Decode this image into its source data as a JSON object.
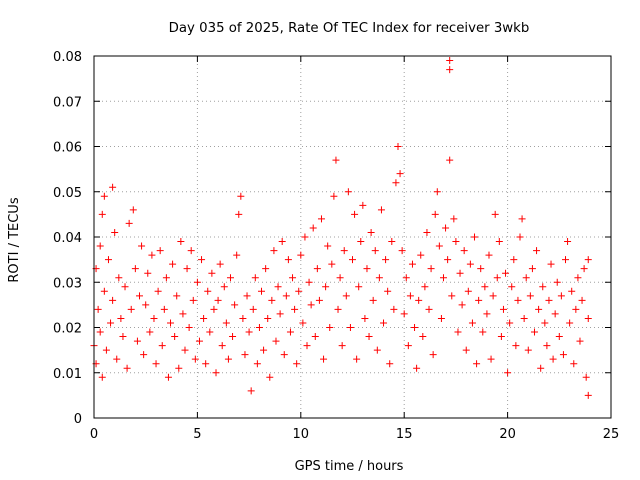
{
  "chart_data": {
    "type": "scatter",
    "title": "Day 035 of 2025, Rate Of TEC Index for receiver 3wkb",
    "xlabel": "GPS time / hours",
    "ylabel": "ROTI / TECUs",
    "xlim": [
      0,
      25
    ],
    "ylim": [
      0,
      0.08
    ],
    "xticks": [
      0,
      5,
      10,
      15,
      20,
      25
    ],
    "xtick_labels": [
      "0",
      "5",
      "10",
      "15",
      "20",
      "25"
    ],
    "yticks": [
      0,
      0.01,
      0.02,
      0.03,
      0.04,
      0.05,
      0.06,
      0.07,
      0.08
    ],
    "ytick_labels": [
      "0",
      "0.01",
      "0.02",
      "0.03",
      "0.04",
      "0.05",
      "0.06",
      "0.07",
      "0.08"
    ],
    "grid": true,
    "marker": "+",
    "series": [
      {
        "name": "ROTI",
        "color": "#ff0000",
        "points": [
          [
            0.0,
            0.016
          ],
          [
            0.1,
            0.012
          ],
          [
            0.1,
            0.033
          ],
          [
            0.2,
            0.024
          ],
          [
            0.3,
            0.038
          ],
          [
            0.3,
            0.019
          ],
          [
            0.4,
            0.045
          ],
          [
            0.4,
            0.009
          ],
          [
            0.5,
            0.049
          ],
          [
            0.5,
            0.028
          ],
          [
            0.6,
            0.015
          ],
          [
            0.7,
            0.035
          ],
          [
            0.8,
            0.021
          ],
          [
            0.9,
            0.051
          ],
          [
            0.9,
            0.026
          ],
          [
            1.0,
            0.041
          ],
          [
            1.1,
            0.013
          ],
          [
            1.2,
            0.031
          ],
          [
            1.3,
            0.022
          ],
          [
            1.4,
            0.018
          ],
          [
            1.5,
            0.029
          ],
          [
            1.6,
            0.011
          ],
          [
            1.7,
            0.043
          ],
          [
            1.8,
            0.024
          ],
          [
            1.9,
            0.046
          ],
          [
            2.0,
            0.033
          ],
          [
            2.1,
            0.017
          ],
          [
            2.2,
            0.027
          ],
          [
            2.3,
            0.038
          ],
          [
            2.4,
            0.014
          ],
          [
            2.5,
            0.025
          ],
          [
            2.6,
            0.032
          ],
          [
            2.7,
            0.019
          ],
          [
            2.8,
            0.036
          ],
          [
            2.9,
            0.022
          ],
          [
            3.0,
            0.012
          ],
          [
            3.1,
            0.028
          ],
          [
            3.2,
            0.037
          ],
          [
            3.3,
            0.016
          ],
          [
            3.4,
            0.024
          ],
          [
            3.5,
            0.031
          ],
          [
            3.6,
            0.009
          ],
          [
            3.7,
            0.021
          ],
          [
            3.8,
            0.034
          ],
          [
            3.9,
            0.018
          ],
          [
            4.0,
            0.027
          ],
          [
            4.1,
            0.011
          ],
          [
            4.2,
            0.039
          ],
          [
            4.3,
            0.023
          ],
          [
            4.4,
            0.015
          ],
          [
            4.5,
            0.033
          ],
          [
            4.6,
            0.02
          ],
          [
            4.7,
            0.037
          ],
          [
            4.8,
            0.026
          ],
          [
            4.9,
            0.013
          ],
          [
            5.0,
            0.03
          ],
          [
            5.1,
            0.017
          ],
          [
            5.2,
            0.035
          ],
          [
            5.3,
            0.022
          ],
          [
            5.4,
            0.012
          ],
          [
            5.5,
            0.028
          ],
          [
            5.6,
            0.019
          ],
          [
            5.7,
            0.032
          ],
          [
            5.8,
            0.024
          ],
          [
            5.9,
            0.01
          ],
          [
            6.0,
            0.026
          ],
          [
            6.1,
            0.034
          ],
          [
            6.2,
            0.016
          ],
          [
            6.3,
            0.029
          ],
          [
            6.4,
            0.021
          ],
          [
            6.5,
            0.013
          ],
          [
            6.6,
            0.031
          ],
          [
            6.7,
            0.018
          ],
          [
            6.8,
            0.025
          ],
          [
            6.9,
            0.036
          ],
          [
            7.0,
            0.045
          ],
          [
            7.1,
            0.049
          ],
          [
            7.2,
            0.022
          ],
          [
            7.3,
            0.014
          ],
          [
            7.4,
            0.027
          ],
          [
            7.5,
            0.019
          ],
          [
            7.6,
            0.006
          ],
          [
            7.7,
            0.024
          ],
          [
            7.8,
            0.031
          ],
          [
            7.9,
            0.012
          ],
          [
            8.0,
            0.02
          ],
          [
            8.1,
            0.028
          ],
          [
            8.2,
            0.015
          ],
          [
            8.3,
            0.033
          ],
          [
            8.4,
            0.022
          ],
          [
            8.5,
            0.009
          ],
          [
            8.6,
            0.026
          ],
          [
            8.7,
            0.037
          ],
          [
            8.8,
            0.017
          ],
          [
            8.9,
            0.029
          ],
          [
            9.0,
            0.023
          ],
          [
            9.1,
            0.039
          ],
          [
            9.2,
            0.014
          ],
          [
            9.3,
            0.027
          ],
          [
            9.4,
            0.035
          ],
          [
            9.5,
            0.019
          ],
          [
            9.6,
            0.031
          ],
          [
            9.7,
            0.024
          ],
          [
            9.8,
            0.012
          ],
          [
            9.9,
            0.028
          ],
          [
            10.0,
            0.036
          ],
          [
            10.1,
            0.021
          ],
          [
            10.2,
            0.04
          ],
          [
            10.3,
            0.016
          ],
          [
            10.4,
            0.03
          ],
          [
            10.5,
            0.025
          ],
          [
            10.6,
            0.042
          ],
          [
            10.7,
            0.018
          ],
          [
            10.8,
            0.033
          ],
          [
            10.9,
            0.026
          ],
          [
            11.0,
            0.044
          ],
          [
            11.1,
            0.013
          ],
          [
            11.2,
            0.029
          ],
          [
            11.3,
            0.038
          ],
          [
            11.4,
            0.02
          ],
          [
            11.5,
            0.034
          ],
          [
            11.6,
            0.049
          ],
          [
            11.7,
            0.057
          ],
          [
            11.8,
            0.024
          ],
          [
            11.9,
            0.031
          ],
          [
            12.0,
            0.016
          ],
          [
            12.1,
            0.037
          ],
          [
            12.2,
            0.027
          ],
          [
            12.3,
            0.05
          ],
          [
            12.4,
            0.02
          ],
          [
            12.5,
            0.035
          ],
          [
            12.6,
            0.045
          ],
          [
            12.7,
            0.013
          ],
          [
            12.8,
            0.029
          ],
          [
            12.9,
            0.039
          ],
          [
            13.0,
            0.047
          ],
          [
            13.1,
            0.022
          ],
          [
            13.2,
            0.033
          ],
          [
            13.3,
            0.018
          ],
          [
            13.4,
            0.041
          ],
          [
            13.5,
            0.026
          ],
          [
            13.6,
            0.037
          ],
          [
            13.7,
            0.015
          ],
          [
            13.8,
            0.031
          ],
          [
            13.9,
            0.046
          ],
          [
            14.0,
            0.021
          ],
          [
            14.1,
            0.035
          ],
          [
            14.2,
            0.028
          ],
          [
            14.3,
            0.012
          ],
          [
            14.4,
            0.039
          ],
          [
            14.5,
            0.024
          ],
          [
            14.6,
            0.052
          ],
          [
            14.7,
            0.06
          ],
          [
            14.8,
            0.054
          ],
          [
            14.9,
            0.037
          ],
          [
            15.0,
            0.023
          ],
          [
            15.1,
            0.031
          ],
          [
            15.2,
            0.016
          ],
          [
            15.3,
            0.027
          ],
          [
            15.4,
            0.034
          ],
          [
            15.5,
            0.02
          ],
          [
            15.6,
            0.011
          ],
          [
            15.7,
            0.026
          ],
          [
            15.8,
            0.036
          ],
          [
            15.9,
            0.018
          ],
          [
            16.0,
            0.029
          ],
          [
            16.1,
            0.041
          ],
          [
            16.2,
            0.024
          ],
          [
            16.3,
            0.033
          ],
          [
            16.4,
            0.014
          ],
          [
            16.5,
            0.045
          ],
          [
            16.6,
            0.05
          ],
          [
            16.7,
            0.038
          ],
          [
            16.8,
            0.022
          ],
          [
            16.9,
            0.031
          ],
          [
            17.0,
            0.042
          ],
          [
            17.1,
            0.035
          ],
          [
            17.2,
            0.057
          ],
          [
            17.2,
            0.077
          ],
          [
            17.2,
            0.079
          ],
          [
            17.3,
            0.027
          ],
          [
            17.4,
            0.044
          ],
          [
            17.5,
            0.039
          ],
          [
            17.6,
            0.019
          ],
          [
            17.7,
            0.032
          ],
          [
            17.8,
            0.025
          ],
          [
            17.9,
            0.037
          ],
          [
            18.0,
            0.015
          ],
          [
            18.1,
            0.028
          ],
          [
            18.2,
            0.034
          ],
          [
            18.3,
            0.021
          ],
          [
            18.4,
            0.04
          ],
          [
            18.5,
            0.012
          ],
          [
            18.6,
            0.026
          ],
          [
            18.7,
            0.033
          ],
          [
            18.8,
            0.019
          ],
          [
            18.9,
            0.029
          ],
          [
            19.0,
            0.023
          ],
          [
            19.1,
            0.036
          ],
          [
            19.2,
            0.013
          ],
          [
            19.3,
            0.027
          ],
          [
            19.4,
            0.045
          ],
          [
            19.5,
            0.031
          ],
          [
            19.6,
            0.039
          ],
          [
            19.7,
            0.018
          ],
          [
            19.8,
            0.024
          ],
          [
            19.9,
            0.032
          ],
          [
            20.0,
            0.01
          ],
          [
            20.1,
            0.021
          ],
          [
            20.2,
            0.029
          ],
          [
            20.3,
            0.035
          ],
          [
            20.4,
            0.016
          ],
          [
            20.5,
            0.026
          ],
          [
            20.6,
            0.04
          ],
          [
            20.7,
            0.044
          ],
          [
            20.8,
            0.022
          ],
          [
            20.9,
            0.031
          ],
          [
            21.0,
            0.015
          ],
          [
            21.1,
            0.027
          ],
          [
            21.2,
            0.033
          ],
          [
            21.3,
            0.019
          ],
          [
            21.4,
            0.037
          ],
          [
            21.5,
            0.024
          ],
          [
            21.6,
            0.011
          ],
          [
            21.7,
            0.029
          ],
          [
            21.8,
            0.021
          ],
          [
            21.9,
            0.016
          ],
          [
            22.0,
            0.026
          ],
          [
            22.1,
            0.034
          ],
          [
            22.2,
            0.013
          ],
          [
            22.3,
            0.023
          ],
          [
            22.4,
            0.03
          ],
          [
            22.5,
            0.018
          ],
          [
            22.6,
            0.027
          ],
          [
            22.7,
            0.014
          ],
          [
            22.8,
            0.035
          ],
          [
            22.9,
            0.039
          ],
          [
            23.0,
            0.021
          ],
          [
            23.1,
            0.028
          ],
          [
            23.2,
            0.012
          ],
          [
            23.3,
            0.024
          ],
          [
            23.4,
            0.031
          ],
          [
            23.5,
            0.017
          ],
          [
            23.6,
            0.026
          ],
          [
            23.7,
            0.033
          ],
          [
            23.8,
            0.009
          ],
          [
            23.9,
            0.022
          ],
          [
            23.9,
            0.035
          ],
          [
            23.9,
            0.005
          ]
        ]
      }
    ]
  }
}
